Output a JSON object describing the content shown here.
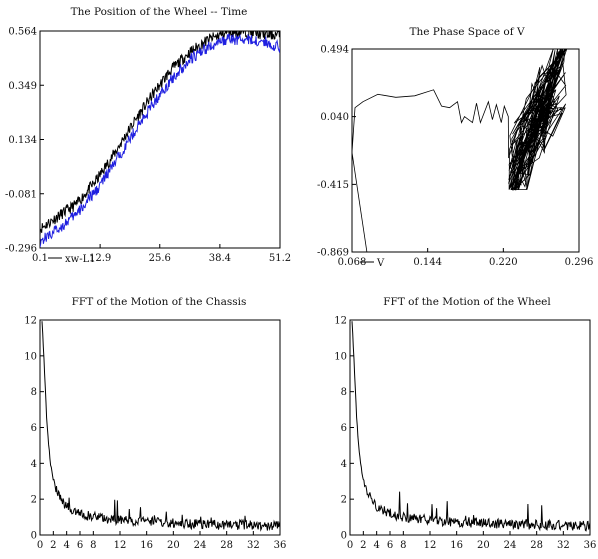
{
  "chart_data": [
    {
      "type": "line",
      "title": "The Position of the Wheel  -- Time",
      "xlabel": "xw-L1",
      "ylabel": "",
      "xlim": [
        0.1,
        51.2
      ],
      "ylim": [
        -0.296,
        0.564
      ],
      "x_ticks": [
        "0.1",
        "12.9",
        "25.6",
        "38.4",
        "51.2"
      ],
      "y_ticks": [
        "0.564",
        "0.349",
        "0.134",
        "-0.081",
        "-0.296"
      ],
      "series": [
        {
          "color": "#000000",
          "x": [
            0.1,
            4,
            8,
            12,
            16,
            20,
            24,
            28,
            32,
            36,
            40,
            44,
            48,
            51.2
          ],
          "values": [
            -0.22,
            -0.17,
            -0.12,
            -0.03,
            0.08,
            0.2,
            0.31,
            0.41,
            0.48,
            0.53,
            0.56,
            0.56,
            0.55,
            0.55
          ]
        },
        {
          "color": "#1f1fe0",
          "x": [
            0.1,
            4,
            8,
            12,
            16,
            20,
            24,
            28,
            32,
            36,
            40,
            44,
            48,
            51.2
          ],
          "values": [
            -0.27,
            -0.22,
            -0.16,
            -0.07,
            0.04,
            0.16,
            0.27,
            0.37,
            0.45,
            0.5,
            0.53,
            0.53,
            0.52,
            0.5
          ]
        }
      ]
    },
    {
      "type": "line",
      "title": "The Phase Space of V",
      "xlabel": "V",
      "ylabel": "",
      "xlim": [
        0.068,
        0.296
      ],
      "ylim": [
        -0.869,
        0.494
      ],
      "x_ticks": [
        "0.068",
        "0.144",
        "0.220",
        "0.296"
      ],
      "y_ticks": [
        "0.494",
        "0.040",
        "-0.415",
        "-0.869"
      ],
      "series": [
        {
          "color": "#000000",
          "x": [
            0.083,
            0.068,
            0.071,
            0.079,
            0.094,
            0.112,
            0.131,
            0.15,
            0.158,
            0.166,
            0.174,
            0.178,
            0.181,
            0.189,
            0.193,
            0.197,
            0.205,
            0.209,
            0.213,
            0.218,
            0.221,
            0.225
          ],
          "values": [
            -0.869,
            -0.2,
            0.1,
            0.14,
            0.19,
            0.17,
            0.18,
            0.22,
            0.11,
            0.1,
            0.14,
            0.0,
            0.04,
            0.0,
            0.13,
            0.0,
            0.14,
            0.02,
            0.12,
            0.0,
            0.11,
            0.04
          ]
        }
      ],
      "cluster": {
        "x_range": [
          0.225,
          0.285
        ],
        "y_range": [
          -0.45,
          0.494
        ],
        "note_count": 170
      }
    },
    {
      "type": "line",
      "title": "FFT of the Motion of the Chassis",
      "xlabel": "",
      "ylabel": "",
      "xlim": [
        0,
        36
      ],
      "ylim": [
        0,
        12
      ],
      "x_ticks": [
        "0",
        "2",
        "4",
        "6",
        "8",
        "12",
        "16",
        "20",
        "24",
        "28",
        "32",
        "36"
      ],
      "y_ticks": [
        "0",
        "2",
        "4",
        "6",
        "8",
        "10",
        "12"
      ],
      "series": [
        {
          "color": "#000000",
          "x": [
            0.3,
            0.5,
            0.8,
            1.0,
            1.3,
            1.6,
            2.0,
            2.5,
            3.0,
            3.5,
            4.0,
            5.0,
            6.0,
            8.0,
            10.0,
            14.0,
            18.0,
            24.0,
            30.0,
            36.0
          ],
          "values": [
            12,
            10.5,
            8.2,
            6.5,
            5.0,
            3.9,
            3.1,
            2.5,
            2.1,
            1.8,
            1.6,
            1.4,
            1.2,
            1.0,
            0.9,
            0.75,
            0.7,
            0.6,
            0.55,
            0.5
          ]
        }
      ]
    },
    {
      "type": "line",
      "title": "FFT of the Motion of the Wheel",
      "xlabel": "",
      "ylabel": "",
      "xlim": [
        0,
        36
      ],
      "ylim": [
        0,
        12
      ],
      "x_ticks": [
        "0",
        "2",
        "4",
        "6",
        "8",
        "12",
        "16",
        "20",
        "24",
        "28",
        "32",
        "36"
      ],
      "y_ticks": [
        "0",
        "2",
        "4",
        "6",
        "8",
        "10",
        "12"
      ],
      "series": [
        {
          "color": "#000000",
          "x": [
            0.3,
            0.5,
            0.8,
            1.0,
            1.3,
            1.6,
            2.0,
            2.5,
            3.0,
            3.5,
            4.0,
            5.0,
            6.0,
            8.0,
            10.0,
            14.0,
            18.0,
            24.0,
            30.0,
            36.0
          ],
          "values": [
            12,
            10.5,
            8.2,
            6.5,
            5.0,
            3.9,
            3.1,
            2.5,
            2.1,
            1.8,
            1.6,
            1.4,
            1.2,
            1.0,
            0.9,
            0.75,
            0.7,
            0.6,
            0.55,
            0.5
          ]
        }
      ]
    }
  ]
}
